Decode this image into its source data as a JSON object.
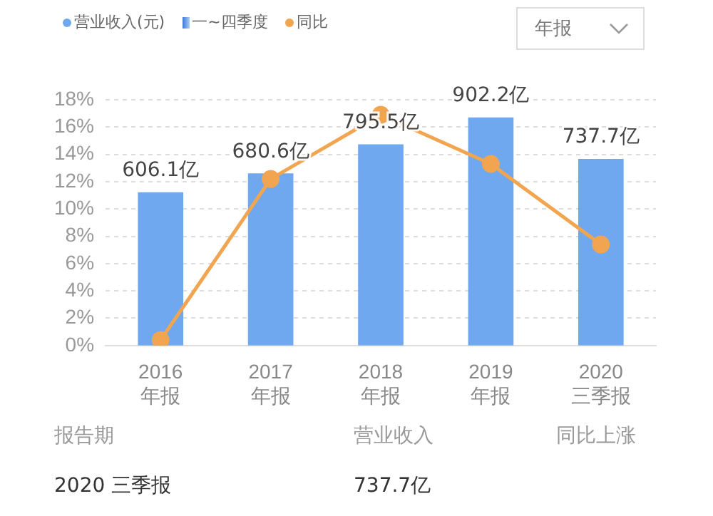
{
  "chart_data": {
    "type": "bar",
    "categories": [
      "2016\n年报",
      "2017\n年报",
      "2018\n年报",
      "2019\n年报",
      "2020\n三季报"
    ],
    "series": [
      {
        "name": "营业收入(元)",
        "axis": "y2",
        "color": "#6fa8ee",
        "values": [
          606.1,
          680.6,
          795.5,
          902.2,
          737.7
        ],
        "value_labels": [
          "606.1亿",
          "680.6亿",
          "795.5亿",
          "902.2亿",
          "737.7亿"
        ]
      },
      {
        "name": "同比",
        "type": "line",
        "color": "#f2a550",
        "values": [
          0.4,
          12.2,
          16.9,
          13.3,
          7.4
        ]
      }
    ],
    "ylim": [
      0,
      18
    ],
    "yticks": [
      {
        "value": 0,
        "label": "0%"
      },
      {
        "value": 2,
        "label": "2%"
      },
      {
        "value": 4,
        "label": "4%"
      },
      {
        "value": 6,
        "label": "6%"
      },
      {
        "value": 8,
        "label": "8%"
      },
      {
        "value": 10,
        "label": "10%"
      },
      {
        "value": 12,
        "label": "12%"
      },
      {
        "value": 14,
        "label": "14%"
      },
      {
        "value": 16,
        "label": "16%"
      },
      {
        "value": 18,
        "label": "18%"
      }
    ],
    "y2lim": [
      0,
      972
    ],
    "grid": "y",
    "legend": "top left",
    "marker": "circle",
    "annotations": [
      "一~四季度",
      "年报",
      "报告期",
      "营业收入",
      "同比上涨",
      "2020 三季报",
      "737.7亿"
    ]
  }
}
